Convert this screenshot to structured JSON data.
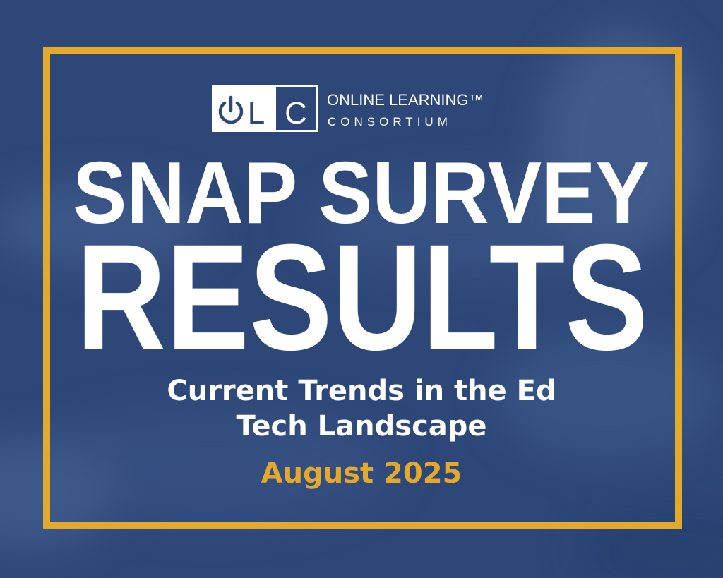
{
  "logo": {
    "letters": [
      "L",
      "C"
    ],
    "name": "ONLINE LEARNING™",
    "tagline": "CONSORTIUM"
  },
  "title": [
    "SNAP SURVEY",
    "RESULTS"
  ],
  "subtitle": [
    "Current Trends in the Ed",
    "Tech Landscape"
  ],
  "date": "August 2025"
}
